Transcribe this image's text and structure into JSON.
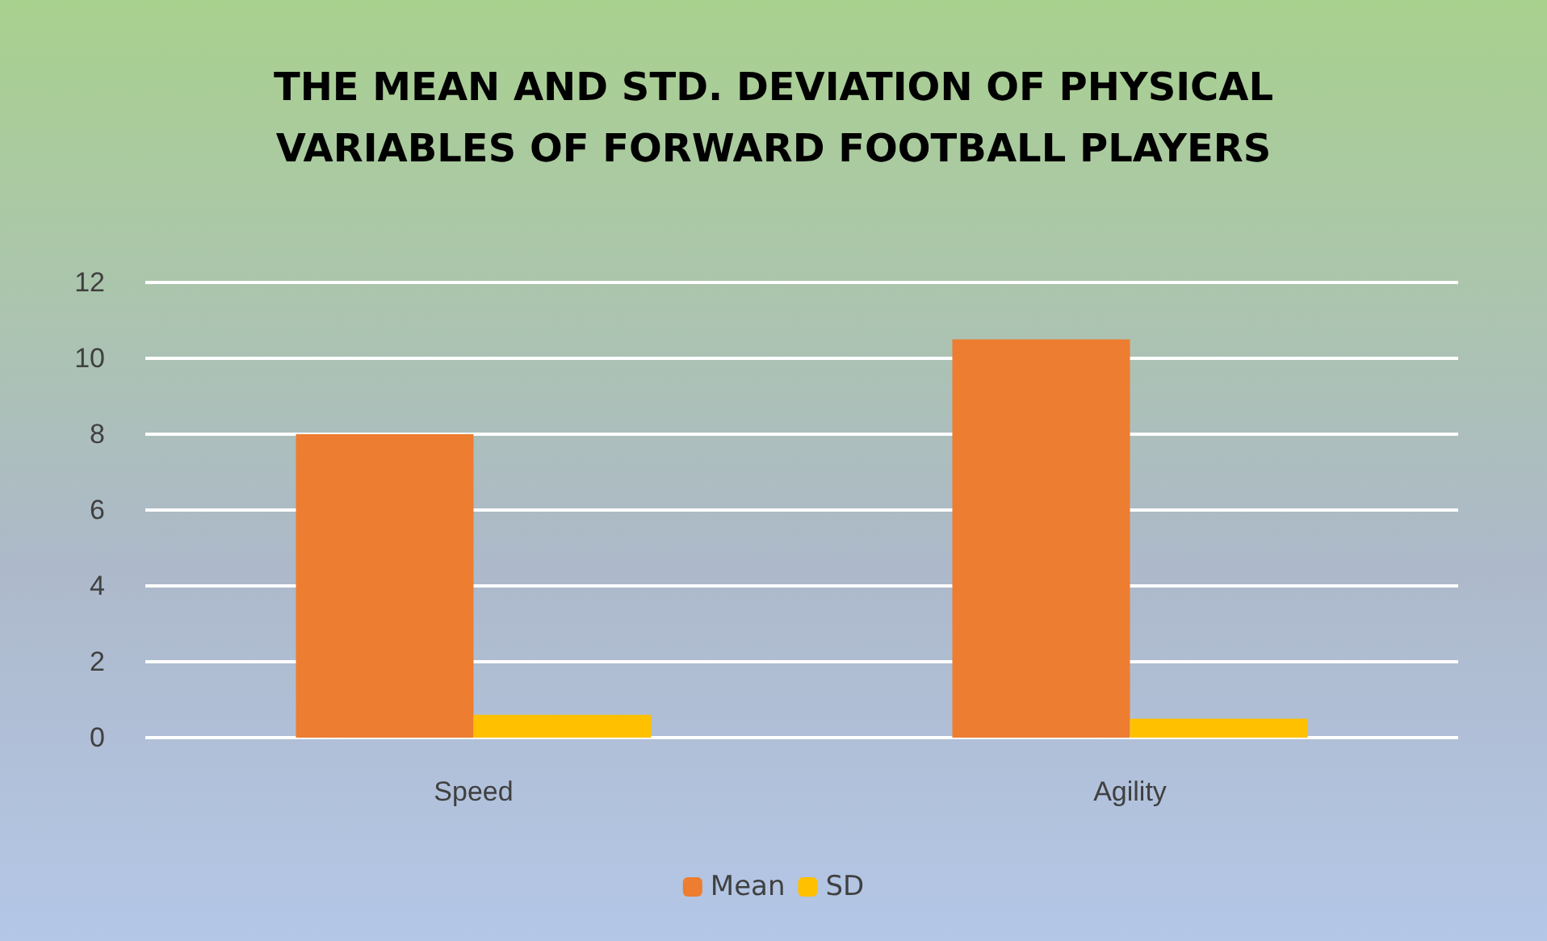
{
  "chart_data": {
    "type": "bar",
    "title": "THE MEAN AND STD. DEVIATION OF PHYSICAL\nVARIABLES OF FORWARD FOOTBALL PLAYERS",
    "categories": [
      "Speed",
      "Agility"
    ],
    "series": [
      {
        "name": "Mean",
        "color": "#ed7d31",
        "values": [
          8.0,
          10.5
        ]
      },
      {
        "name": "SD",
        "color": "#ffc000",
        "values": [
          0.6,
          0.5
        ]
      }
    ],
    "ylim": [
      0,
      12
    ],
    "yticks": [
      0,
      2,
      4,
      6,
      8,
      10,
      12
    ],
    "grid": "y",
    "legend": "bottom"
  }
}
